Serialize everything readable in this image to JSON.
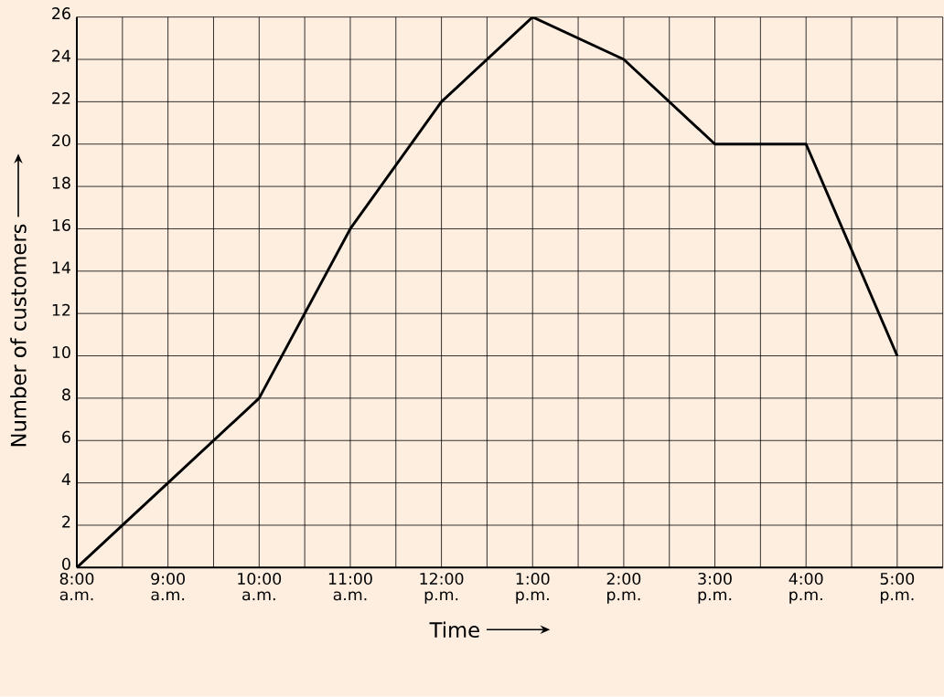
{
  "chart_data": {
    "type": "line",
    "xlabel": "Time",
    "ylabel": "Number of customers",
    "x": [
      8,
      9,
      10,
      11,
      12,
      13,
      14,
      15,
      16,
      17
    ],
    "values": [
      0,
      4,
      8,
      16,
      22,
      26,
      24,
      20,
      20,
      10
    ],
    "color": "#000000",
    "xlim": [
      8,
      17.5
    ],
    "ylim": [
      0,
      26
    ],
    "xticks": [
      {
        "value": 8,
        "label": "8:00 a.m."
      },
      {
        "value": 8.5,
        "label": null
      },
      {
        "value": 9,
        "label": "9:00 a.m."
      },
      {
        "value": 9.5,
        "label": null
      },
      {
        "value": 10,
        "label": "10:00 a.m."
      },
      {
        "value": 10.5,
        "label": null
      },
      {
        "value": 11,
        "label": "11:00 a.m."
      },
      {
        "value": 11.5,
        "label": null
      },
      {
        "value": 12,
        "label": "12:00 p.m."
      },
      {
        "value": 12.5,
        "label": null
      },
      {
        "value": 13,
        "label": "1:00 p.m."
      },
      {
        "value": 13.5,
        "label": null
      },
      {
        "value": 14,
        "label": "2:00 p.m."
      },
      {
        "value": 14.5,
        "label": null
      },
      {
        "value": 15,
        "label": "3:00 p.m."
      },
      {
        "value": 15.5,
        "label": null
      },
      {
        "value": 16,
        "label": "4:00 p.m."
      },
      {
        "value": 16.5,
        "label": null
      },
      {
        "value": 17,
        "label": "5:00 p.m."
      },
      {
        "value": 17.5,
        "label": null
      }
    ],
    "yticks": [
      0,
      2,
      4,
      6,
      8,
      10,
      12,
      14,
      16,
      18,
      20,
      22,
      24,
      26
    ],
    "grid": true
  }
}
